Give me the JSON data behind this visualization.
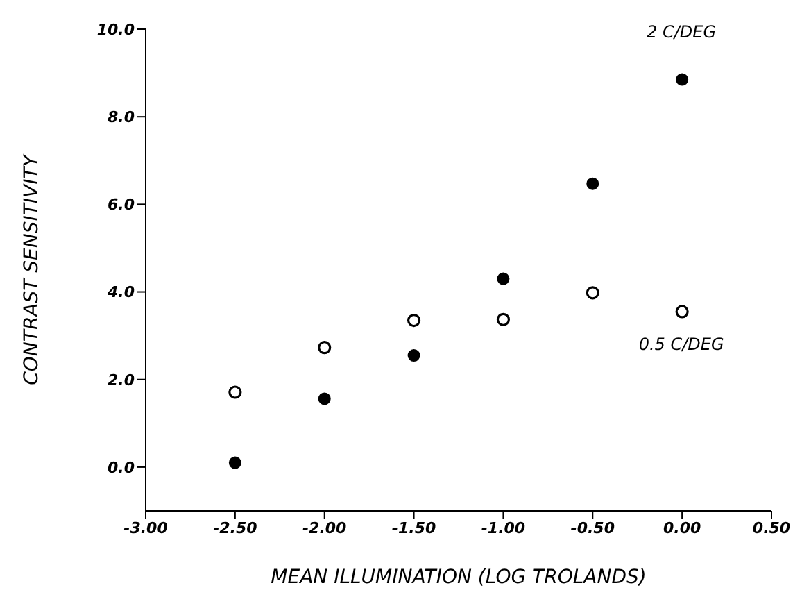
{
  "chart_data": {
    "type": "scatter",
    "xlabel": "MEAN ILLUMINATION (LOG TROLANDS)",
    "ylabel": "CONTRAST SENSITIVITY",
    "x": [
      -2.5,
      -2.0,
      -1.5,
      -1.0,
      -0.5,
      0.0
    ],
    "series": [
      {
        "name": "2 C/DEG",
        "color": "#000000",
        "values": [
          0.1,
          1.56,
          2.55,
          4.3,
          6.47,
          8.85
        ]
      },
      {
        "name": "0.5 C/DEG",
        "color": "#000000",
        "values": [
          1.71,
          2.73,
          3.35,
          3.37,
          3.98,
          3.55
        ]
      }
    ],
    "xlim": [
      -3.0,
      0.5
    ],
    "xticks": [
      {
        "value": -3.0,
        "label": "-3.00"
      },
      {
        "value": -2.5,
        "label": "-2.50"
      },
      {
        "value": -2.0,
        "label": "-2.00"
      },
      {
        "value": -1.5,
        "label": "-1.50"
      },
      {
        "value": -1.0,
        "label": "-1.00"
      },
      {
        "value": -0.5,
        "label": "-0.50"
      },
      {
        "value": 0.0,
        "label": "0.00"
      },
      {
        "value": 0.5,
        "label": "0.50"
      }
    ],
    "ylim": [
      -1.0,
      10.0
    ],
    "yticks": [
      {
        "value": 0,
        "label": "0.0"
      },
      {
        "value": 2,
        "label": "2.0"
      },
      {
        "value": 4,
        "label": "4.0"
      },
      {
        "value": 6,
        "label": "6.0"
      },
      {
        "value": 8,
        "label": "8.0"
      },
      {
        "value": 10,
        "label": "10.0"
      }
    ],
    "marker": "circle",
    "grid": false,
    "legend": false
  }
}
